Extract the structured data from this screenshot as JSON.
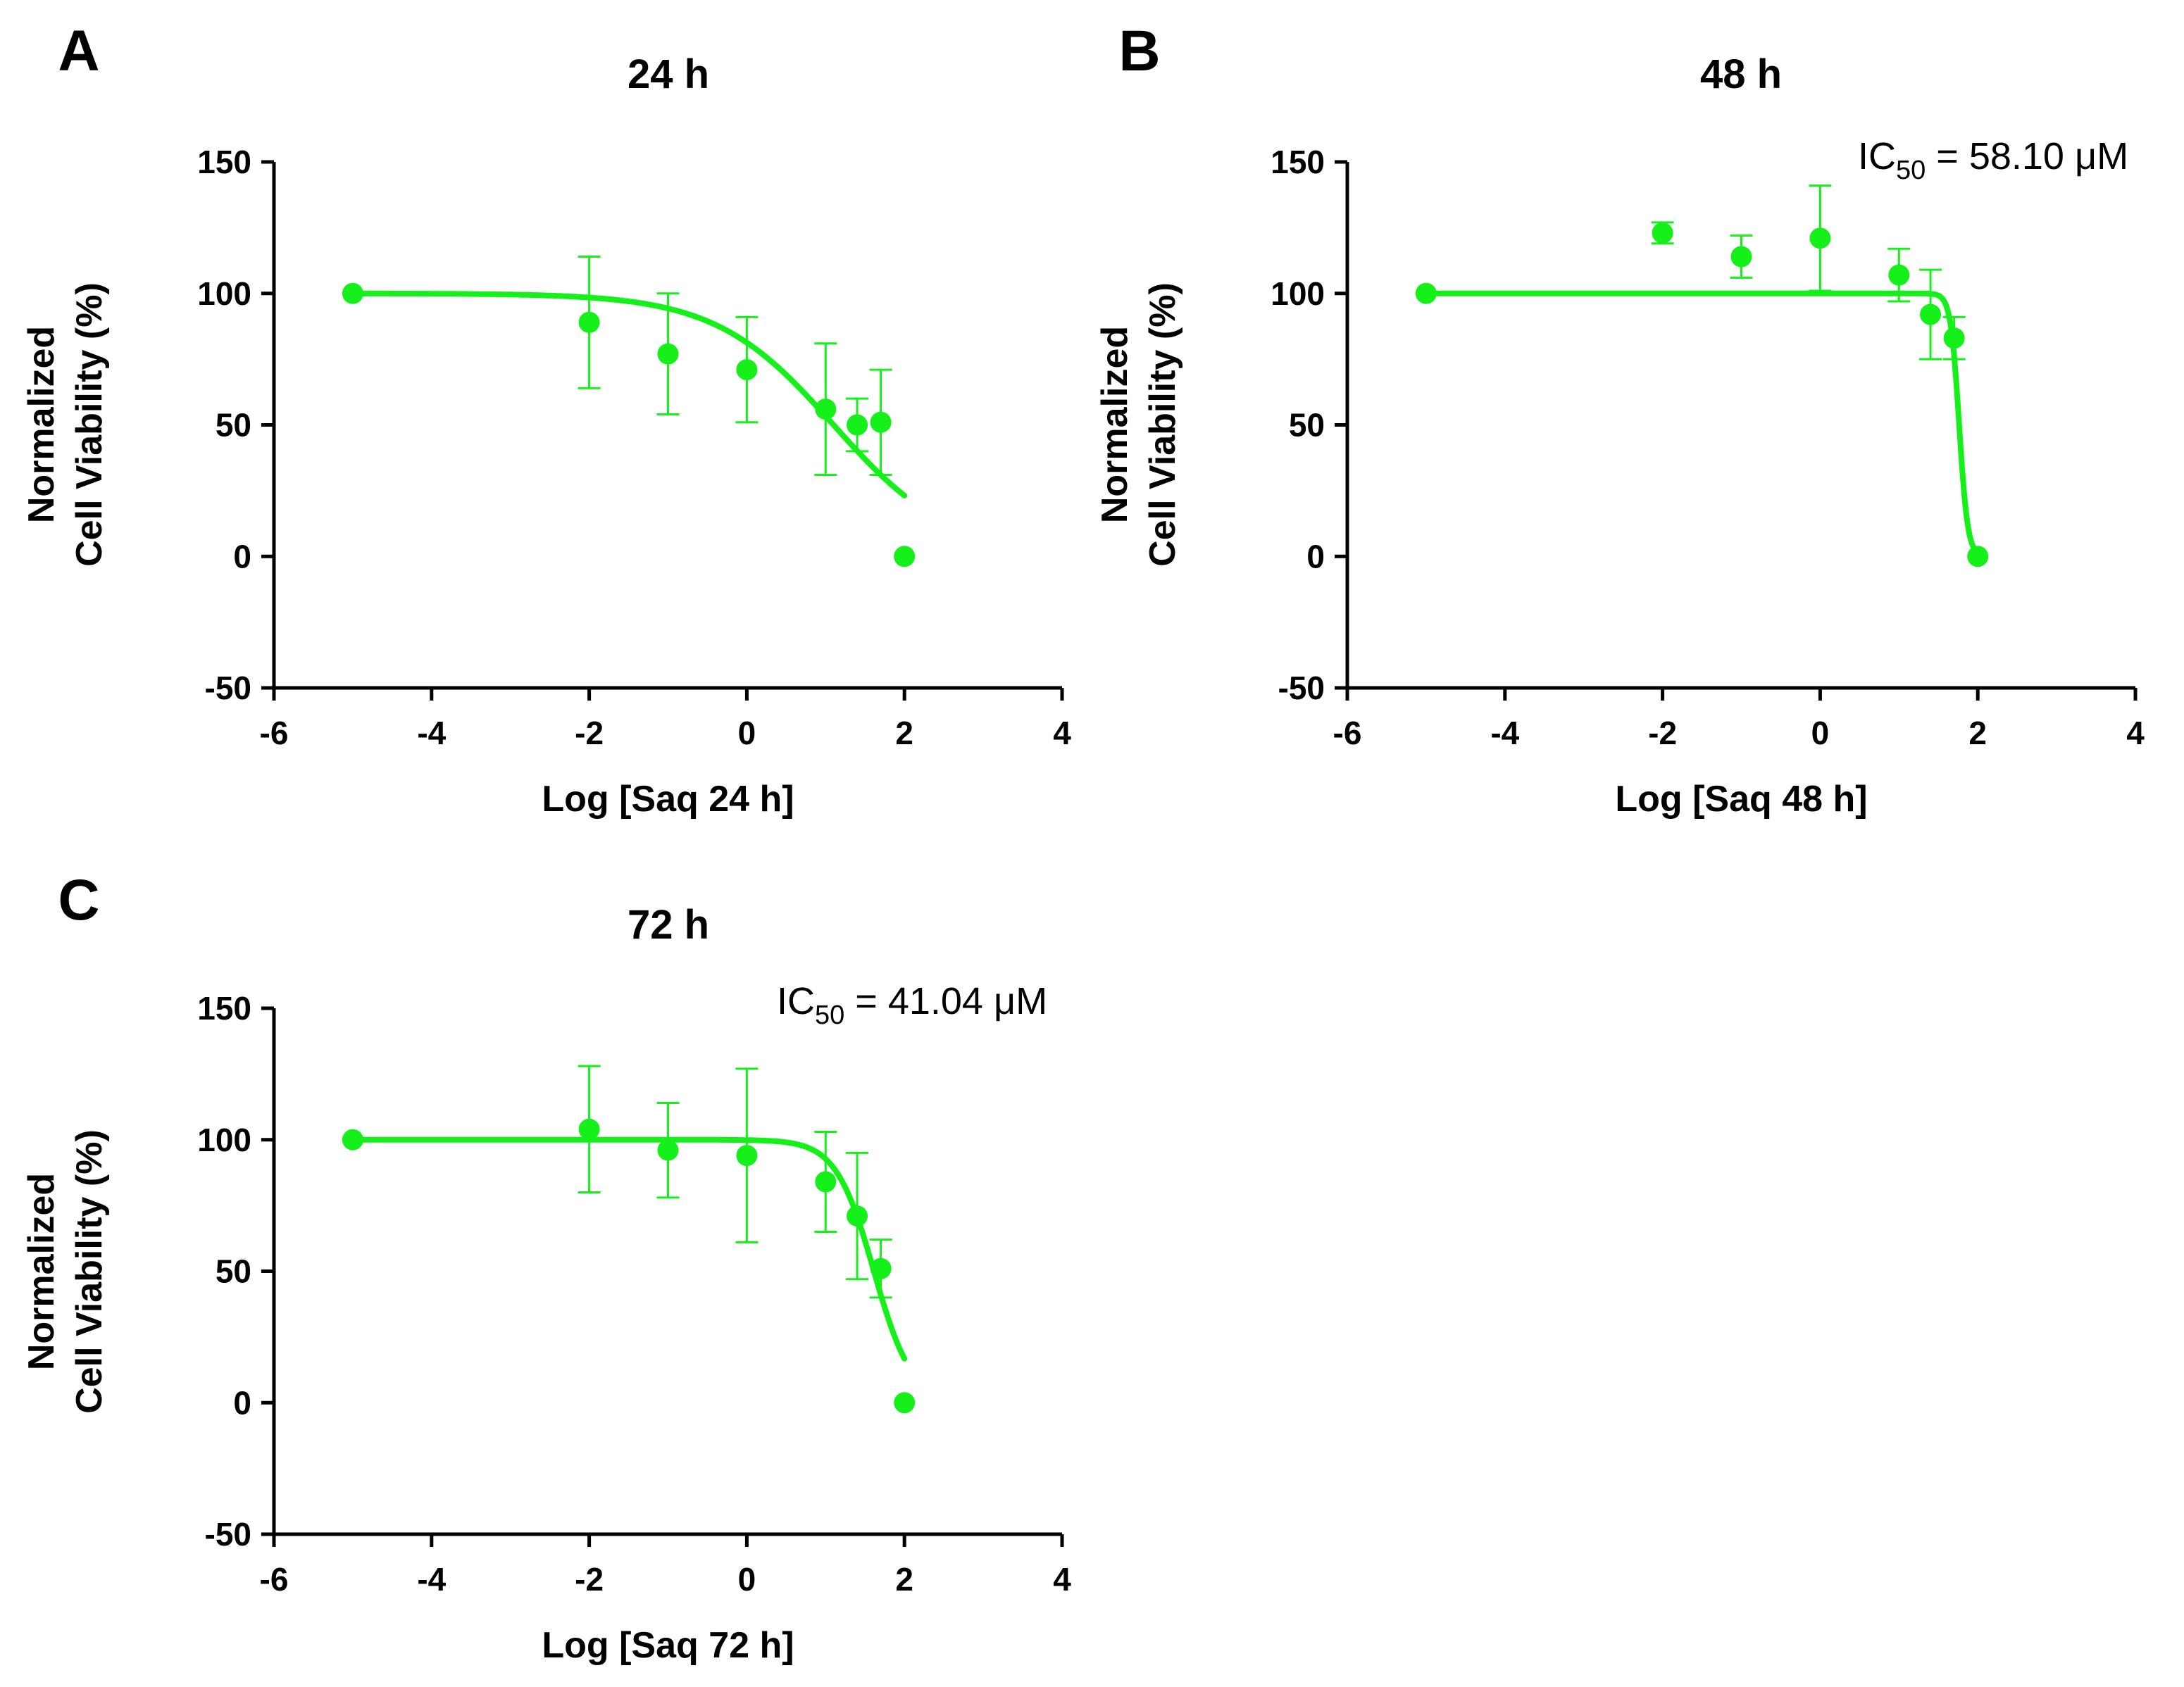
{
  "figure": {
    "series_color": "#16f01a"
  },
  "chart_data": [
    {
      "type": "scatter",
      "panel_label": "A",
      "title": "24 h",
      "xlabel": "Log [Saq 24 h]",
      "ylabel_line1": "Normalized",
      "ylabel_line2": "Cell Viability (%)",
      "xlim": [
        -6,
        4
      ],
      "ylim": [
        -50,
        150
      ],
      "xticks": [
        -6,
        -4,
        -2,
        0,
        2,
        4
      ],
      "yticks": [
        -50,
        0,
        50,
        100,
        150
      ],
      "xtick_labels": [
        "-6",
        "-4",
        "-2",
        "0",
        "2",
        "4"
      ],
      "ytick_labels": [
        "-50",
        "0",
        "50",
        "100",
        "150"
      ],
      "annotation": null,
      "points": [
        {
          "x": -5,
          "y": 100,
          "err": 0
        },
        {
          "x": -2,
          "y": 89,
          "err": 25
        },
        {
          "x": -1,
          "y": 77,
          "err": 23
        },
        {
          "x": 0,
          "y": 71,
          "err": 20
        },
        {
          "x": 1,
          "y": 56,
          "err": 25
        },
        {
          "x": 1.4,
          "y": 50,
          "err": 10
        },
        {
          "x": 1.7,
          "y": 51,
          "err": 20
        },
        {
          "x": 2,
          "y": 0,
          "err": 0
        }
      ],
      "fit": {
        "top": 100,
        "bottom": 0,
        "log_ic50": 1.1,
        "hill": 0.58,
        "x_range": [
          -5,
          2
        ]
      }
    },
    {
      "type": "scatter",
      "panel_label": "B",
      "title": "48 h",
      "xlabel": "Log [Saq 48 h]",
      "ylabel_line1": "Normalized",
      "ylabel_line2": "Cell Viability (%)",
      "xlim": [
        -6,
        4
      ],
      "ylim": [
        -50,
        150
      ],
      "xticks": [
        -6,
        -4,
        -2,
        0,
        2,
        4
      ],
      "yticks": [
        -50,
        0,
        50,
        100,
        150
      ],
      "xtick_labels": [
        "-6",
        "-4",
        "-2",
        "0",
        "2",
        "4"
      ],
      "ytick_labels": [
        "-50",
        "0",
        "50",
        "100",
        "150"
      ],
      "annotation": {
        "prefix": "IC",
        "sub": "50",
        "suffix": " = 58.10 μM"
      },
      "points": [
        {
          "x": -5,
          "y": 100,
          "err": 0
        },
        {
          "x": -2,
          "y": 123,
          "err": 4
        },
        {
          "x": -1,
          "y": 114,
          "err": 8
        },
        {
          "x": 0,
          "y": 121,
          "err": 20
        },
        {
          "x": 1,
          "y": 107,
          "err": 10
        },
        {
          "x": 1.4,
          "y": 92,
          "err": 17
        },
        {
          "x": 1.7,
          "y": 83,
          "err": 8
        },
        {
          "x": 2,
          "y": 0,
          "err": 0
        }
      ],
      "fit": {
        "top": 100,
        "bottom": 0,
        "log_ic50": 1.764,
        "hill": 8,
        "x_range": [
          -5,
          2
        ]
      }
    },
    {
      "type": "scatter",
      "panel_label": "C",
      "title": "72 h",
      "xlabel": "Log [Saq 72 h]",
      "ylabel_line1": "Normalized",
      "ylabel_line2": "Cell Viability (%)",
      "xlim": [
        -6,
        4
      ],
      "ylim": [
        -50,
        150
      ],
      "xticks": [
        -6,
        -4,
        -2,
        0,
        2,
        4
      ],
      "yticks": [
        -50,
        0,
        50,
        100,
        150
      ],
      "xtick_labels": [
        "-6",
        "-4",
        "-2",
        "0",
        "2",
        "4"
      ],
      "ytick_labels": [
        "-50",
        "0",
        "50",
        "100",
        "150"
      ],
      "annotation": {
        "prefix": "IC",
        "sub": "50",
        "suffix": " = 41.04 μM"
      },
      "points": [
        {
          "x": -5,
          "y": 100,
          "err": 0
        },
        {
          "x": -2,
          "y": 104,
          "err": 24
        },
        {
          "x": -1,
          "y": 96,
          "err": 18
        },
        {
          "x": 0,
          "y": 94,
          "err": 33
        },
        {
          "x": 1,
          "y": 84,
          "err": 19
        },
        {
          "x": 1.4,
          "y": 71,
          "err": 24
        },
        {
          "x": 1.7,
          "y": 51,
          "err": 11
        },
        {
          "x": 2,
          "y": 0,
          "err": 0
        }
      ],
      "fit": {
        "top": 100,
        "bottom": 0,
        "log_ic50": 1.613,
        "hill": 1.8,
        "x_range": [
          -5,
          2
        ]
      }
    }
  ]
}
